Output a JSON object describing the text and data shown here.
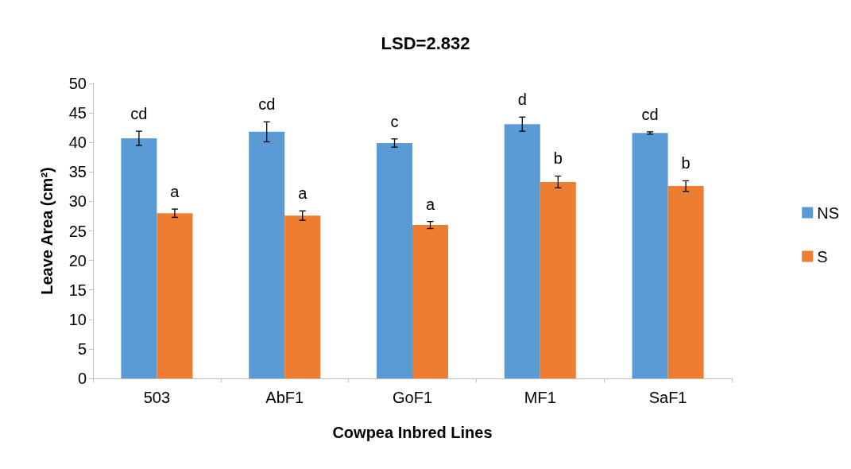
{
  "chart_data": {
    "type": "bar",
    "title": "LSD=2.832",
    "xlabel": "Cowpea Inbred Lines",
    "ylabel": "Leave Area (cm²)",
    "categories": [
      "503",
      "AbF1",
      "GoF1",
      "MF1",
      "SaF1"
    ],
    "series": [
      {
        "name": "NS",
        "color": "#5b9bd5",
        "values": [
          40.7,
          41.8,
          39.9,
          43.1,
          41.6
        ],
        "errors": [
          1.2,
          1.7,
          0.7,
          1.2,
          0.2
        ],
        "value_labels": [
          "cd",
          "cd",
          "c",
          "d",
          "cd"
        ]
      },
      {
        "name": "S",
        "color": "#ed7d31",
        "values": [
          28.0,
          27.6,
          26.0,
          33.3,
          32.6
        ],
        "errors": [
          0.7,
          0.8,
          0.6,
          1.0,
          0.9
        ],
        "value_labels": [
          "a",
          "a",
          "a",
          "b",
          "b"
        ]
      }
    ],
    "ylim": [
      0,
      50
    ],
    "yticks": [
      0,
      5,
      10,
      15,
      20,
      25,
      30,
      35,
      40,
      45,
      50
    ],
    "grid": false,
    "legend": "right"
  }
}
